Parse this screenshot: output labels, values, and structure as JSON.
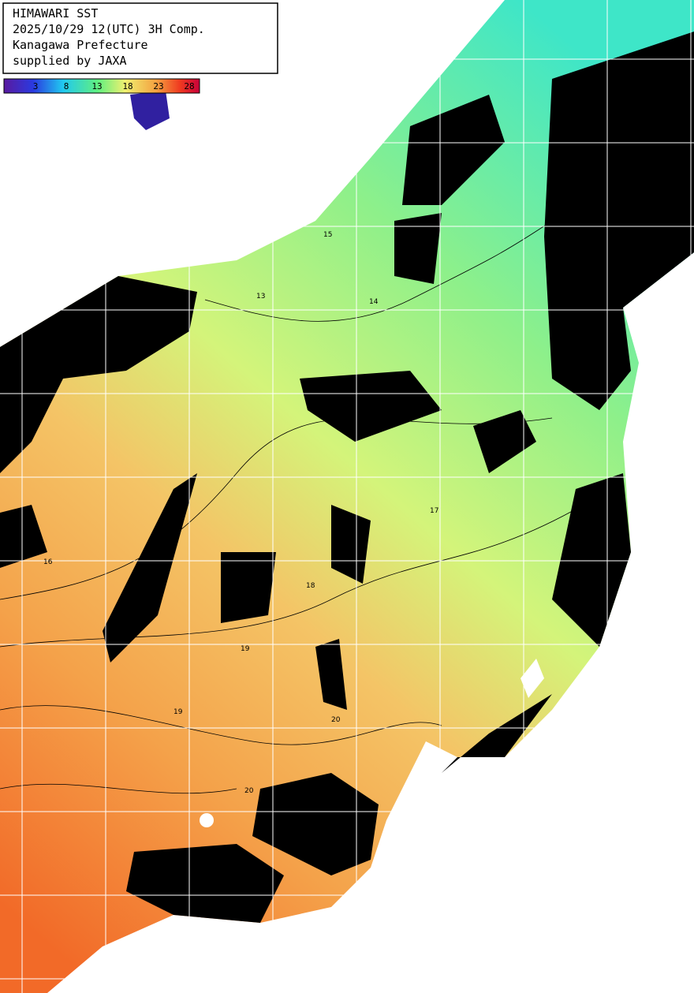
{
  "header": {
    "lines": [
      "HIMAWARI SST",
      "2025/10/29 12(UTC) 3H Comp.",
      "Kanagawa Prefecture",
      "supplied by JAXA"
    ]
  },
  "colorbar": {
    "ticks": [
      3,
      8,
      13,
      18,
      23,
      28
    ]
  },
  "contour_labels": [
    "13",
    "14",
    "15",
    "16",
    "17",
    "18",
    "19",
    "20",
    "19",
    "20"
  ]
}
